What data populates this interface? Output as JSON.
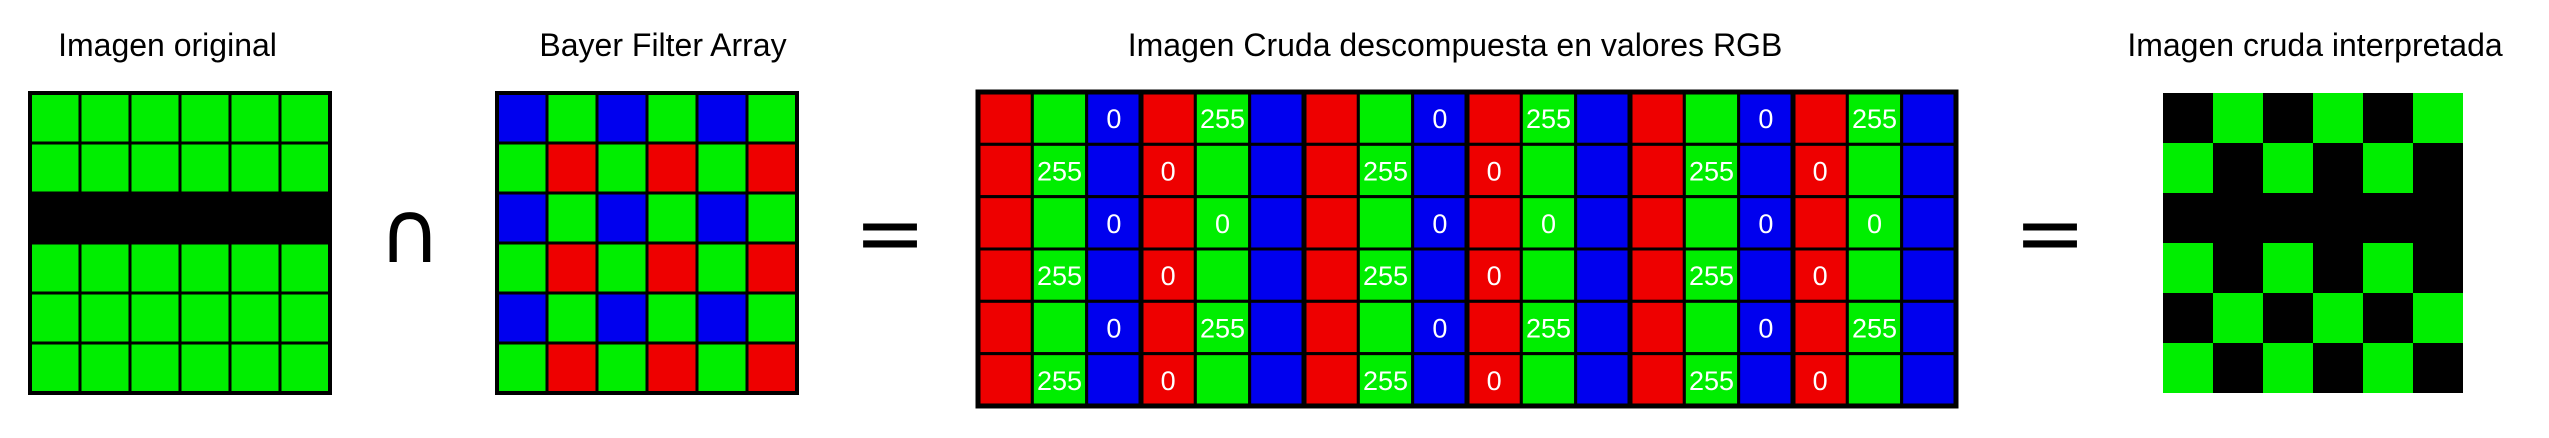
{
  "titles": {
    "original": "Imagen original",
    "bayer": "Bayer Filter Array",
    "raw": "Imagen Cruda descompuesta en valores RGB",
    "interpreted": "Imagen cruda interpretada"
  },
  "operators": {
    "intersect": "∩",
    "equals_1": "=",
    "equals_2": "="
  },
  "colors": {
    "green": "#00ee00",
    "red": "#ee0000",
    "blue": "#0000ee",
    "black": "#000000",
    "outline": "#000000",
    "label": "#ffffff"
  },
  "original_image": {
    "rows": [
      [
        "G",
        "G",
        "G",
        "G",
        "G",
        "G"
      ],
      [
        "G",
        "G",
        "G",
        "G",
        "G",
        "G"
      ],
      [
        "K",
        "K",
        "K",
        "K",
        "K",
        "K"
      ],
      [
        "G",
        "G",
        "G",
        "G",
        "G",
        "G"
      ],
      [
        "G",
        "G",
        "G",
        "G",
        "G",
        "G"
      ],
      [
        "G",
        "G",
        "G",
        "G",
        "G",
        "G"
      ]
    ]
  },
  "bayer_filter": {
    "rows": [
      [
        "B",
        "G",
        "B",
        "G",
        "B",
        "G"
      ],
      [
        "G",
        "R",
        "G",
        "R",
        "G",
        "R"
      ],
      [
        "B",
        "G",
        "B",
        "G",
        "B",
        "G"
      ],
      [
        "G",
        "R",
        "G",
        "R",
        "G",
        "R"
      ],
      [
        "B",
        "G",
        "B",
        "G",
        "B",
        "G"
      ],
      [
        "G",
        "R",
        "G",
        "R",
        "G",
        "R"
      ]
    ]
  },
  "raw_rgb": {
    "rows": [
      {
        "labels": [
          "",
          "",
          "0",
          "",
          "255",
          ""
        ]
      },
      {
        "labels": [
          "",
          "255",
          "",
          "0",
          "",
          ""
        ]
      },
      {
        "labels": [
          "",
          "",
          "0",
          "",
          "0",
          ""
        ]
      },
      {
        "labels": [
          "",
          "255",
          "",
          "0",
          "",
          ""
        ]
      },
      {
        "labels": [
          "",
          "",
          "0",
          "",
          "255",
          ""
        ]
      },
      {
        "labels": [
          "",
          "255",
          "",
          "0",
          "",
          ""
        ]
      }
    ]
  },
  "interpreted_image": {
    "rows": [
      [
        "K",
        "G",
        "K",
        "G",
        "K",
        "G"
      ],
      [
        "G",
        "K",
        "G",
        "K",
        "G",
        "K"
      ],
      [
        "K",
        "K",
        "K",
        "K",
        "K",
        "K"
      ],
      [
        "G",
        "K",
        "G",
        "K",
        "G",
        "K"
      ],
      [
        "K",
        "G",
        "K",
        "G",
        "K",
        "G"
      ],
      [
        "G",
        "K",
        "G",
        "K",
        "G",
        "K"
      ]
    ]
  }
}
